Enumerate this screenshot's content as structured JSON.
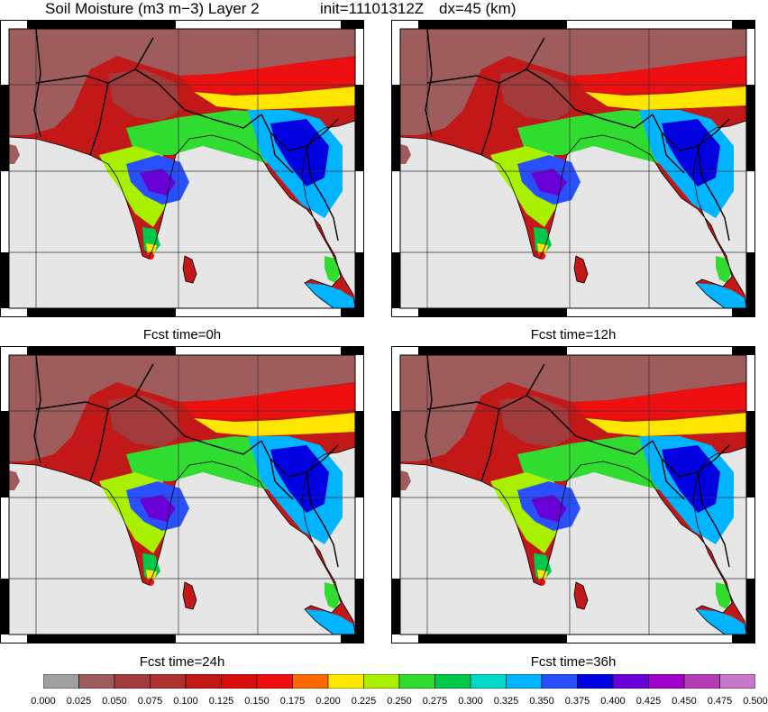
{
  "title": {
    "variable": "Soil Moisture (m3 m−3) Layer 2",
    "init": "init=11101312Z",
    "dx": "dx=45 (km)"
  },
  "panels": [
    {
      "caption": "Fcst time=0h"
    },
    {
      "caption": "Fcst time=12h"
    },
    {
      "caption": "Fcst time=24h"
    },
    {
      "caption": "Fcst time=36h"
    }
  ],
  "colorbar": {
    "labels": [
      "0.000",
      "0.025",
      "0.050",
      "0.075",
      "0.100",
      "0.125",
      "0.150",
      "0.175",
      "0.200",
      "0.225",
      "0.250",
      "0.275",
      "0.300",
      "0.325",
      "0.350",
      "0.375",
      "0.400",
      "0.425",
      "0.450",
      "0.475",
      "0.500"
    ],
    "colors": [
      "#a0a0a0",
      "#9e5c5c",
      "#a23c3c",
      "#b03030",
      "#c21818",
      "#d90c0c",
      "#ee1010",
      "#ff6a00",
      "#ffe600",
      "#a8f000",
      "#30dc30",
      "#00c848",
      "#00d8c8",
      "#00b4ff",
      "#2850ff",
      "#0000e0",
      "#6a00d8",
      "#a000c8",
      "#b43cb4",
      "#c878c8"
    ],
    "min": 0.0,
    "max": 0.5
  }
}
